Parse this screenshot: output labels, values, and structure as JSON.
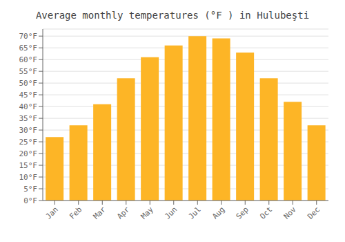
{
  "chart_data": {
    "type": "bar",
    "title": "Average monthly temperatures (°F ) in Hulubeşti",
    "categories": [
      "Jan",
      "Feb",
      "Mar",
      "Apr",
      "May",
      "Jun",
      "Jul",
      "Aug",
      "Sep",
      "Oct",
      "Nov",
      "Dec"
    ],
    "values": [
      27,
      32,
      41,
      52,
      61,
      66,
      70,
      69,
      63,
      52,
      42,
      32
    ],
    "color": "#FDB526",
    "ylim": [
      0,
      73
    ],
    "yticks": [
      {
        "value": 0,
        "label": "0°F"
      },
      {
        "value": 5,
        "label": "5°F"
      },
      {
        "value": 10,
        "label": "10°F"
      },
      {
        "value": 15,
        "label": "15°F"
      },
      {
        "value": 20,
        "label": "20°F"
      },
      {
        "value": 25,
        "label": "25°F"
      },
      {
        "value": 30,
        "label": "30°F"
      },
      {
        "value": 35,
        "label": "35°F"
      },
      {
        "value": 40,
        "label": "40°F"
      },
      {
        "value": 45,
        "label": "45°F"
      },
      {
        "value": 50,
        "label": "50°F"
      },
      {
        "value": 55,
        "label": "55°F"
      },
      {
        "value": 60,
        "label": "60°F"
      },
      {
        "value": 65,
        "label": "65°F"
      },
      {
        "value": 70,
        "label": "70°F"
      }
    ],
    "grid": true
  }
}
